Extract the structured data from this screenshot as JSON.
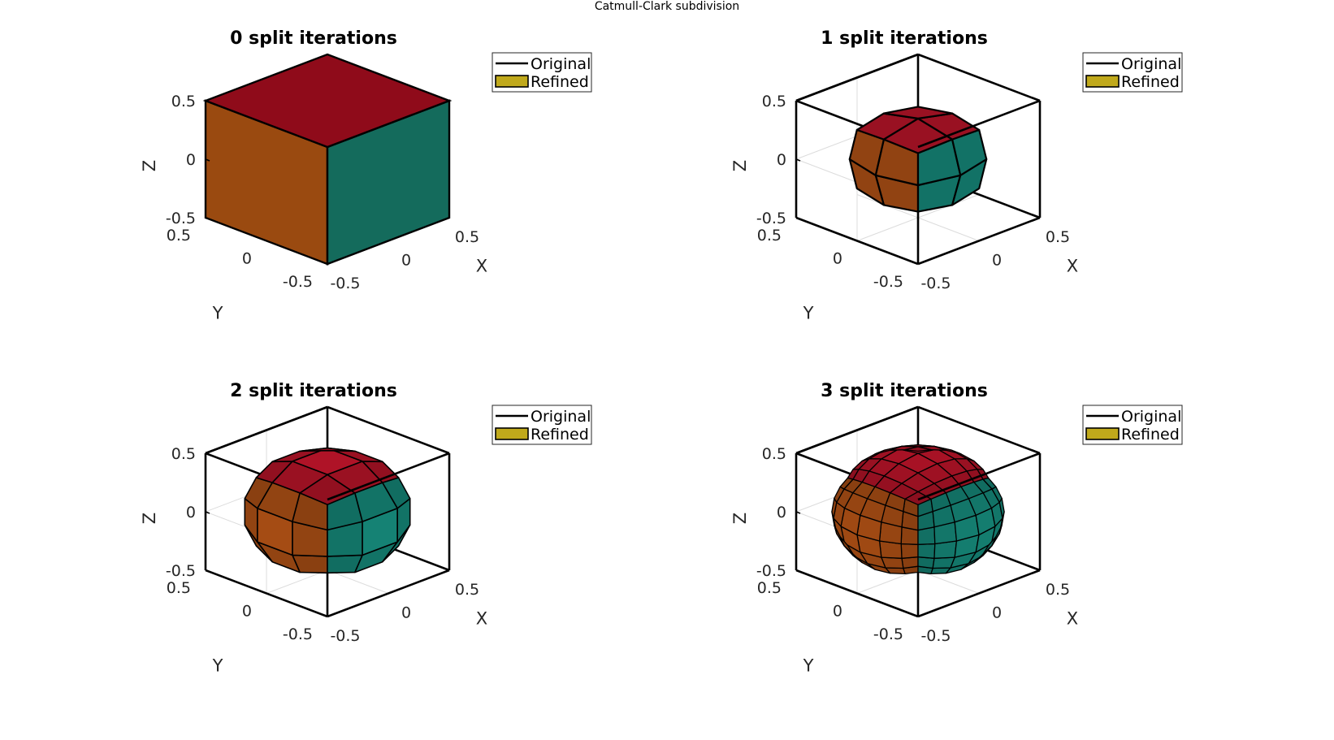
{
  "figure": {
    "title": "Catmull-Clark subdivision"
  },
  "legend": {
    "original": "Original",
    "refined": "Refined"
  },
  "axes": {
    "xlabel": "X",
    "ylabel": "Y",
    "zlabel": "Z",
    "x_ticks": [
      "-0.5",
      "0",
      "0.5"
    ],
    "y_ticks": [
      "0.5",
      "0",
      "-0.5"
    ],
    "z_ticks": [
      "0.5",
      "0",
      "-0.5"
    ]
  },
  "colors": {
    "top_face": "#8f0b1a",
    "top_face_light": "#c2152b",
    "left_face": "#9a4a10",
    "left_face_light": "#d4621a",
    "front_face": "#146b5c",
    "front_face_light": "#16897a",
    "refined_legend_swatch": "#c0a91b",
    "bottom_patch": "#3b56a8"
  },
  "panels": [
    {
      "title": "0 split iterations",
      "iterations": 0,
      "shape": "cube"
    },
    {
      "title": "1 split iterations",
      "iterations": 1,
      "shape": "polyhedron"
    },
    {
      "title": "2 split iterations",
      "iterations": 2,
      "shape": "sphere",
      "rings": 6
    },
    {
      "title": "3 split iterations",
      "iterations": 3,
      "shape": "sphere",
      "rings": 12
    }
  ]
}
